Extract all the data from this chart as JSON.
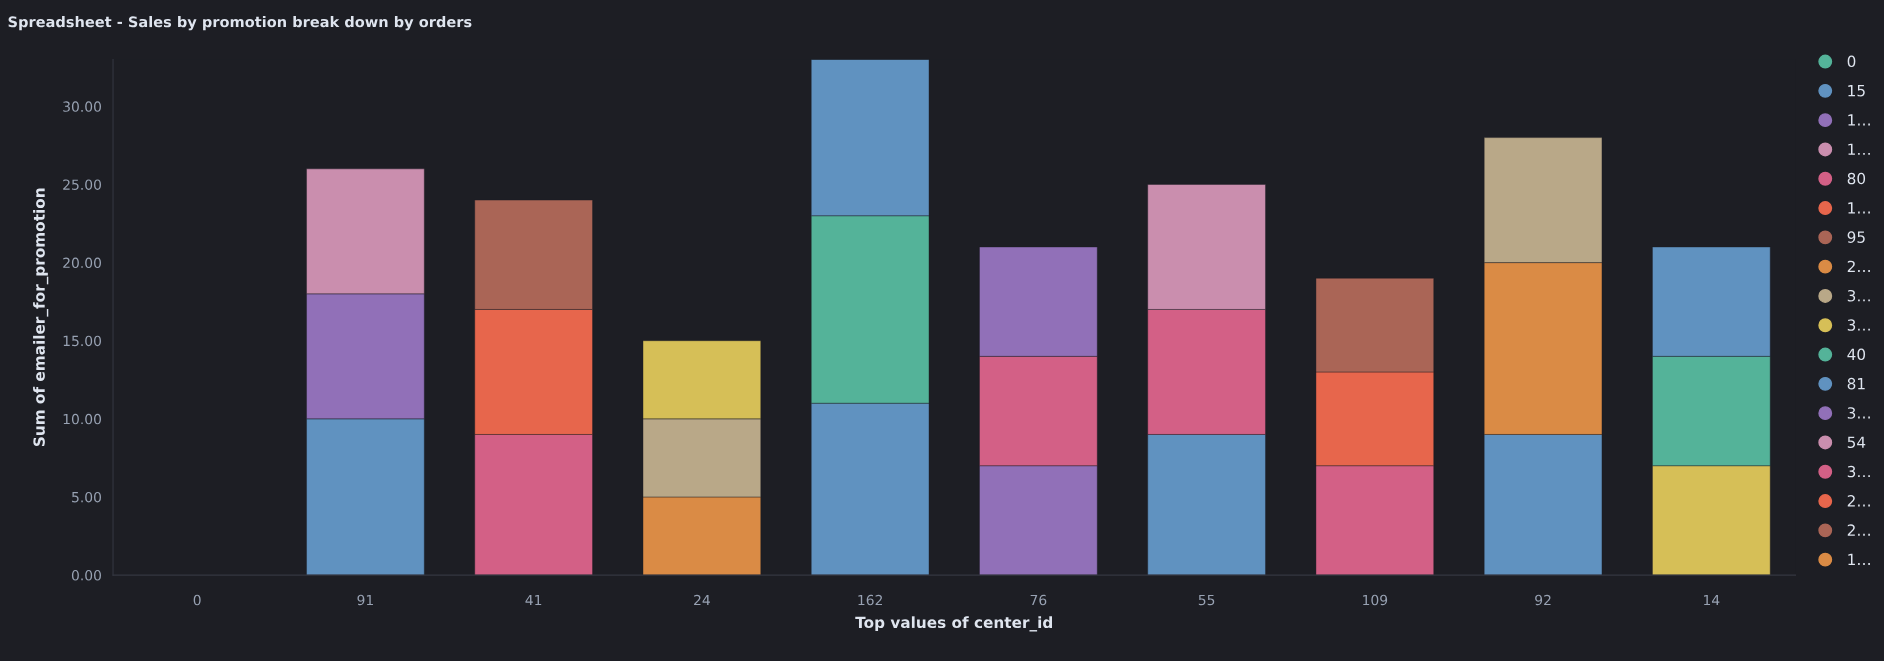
{
  "chart_data": {
    "type": "bar",
    "stacked": true,
    "title": "Spreadsheet - Sales by promotion break down by orders",
    "xlabel": "Top values of center_id",
    "ylabel": "Sum of emailer_for_promotion",
    "categories": [
      "0",
      "91",
      "41",
      "24",
      "162",
      "76",
      "55",
      "109",
      "92",
      "14"
    ],
    "ylim": [
      0,
      33
    ],
    "yticks": [
      {
        "value": 0,
        "label": "0.00"
      },
      {
        "value": 5,
        "label": "5.00"
      },
      {
        "value": 10,
        "label": "10.00"
      },
      {
        "value": 15,
        "label": "15.00"
      },
      {
        "value": 20,
        "label": "20.00"
      },
      {
        "value": 25,
        "label": "25.00"
      },
      {
        "value": 30,
        "label": "30.00"
      }
    ],
    "grid": false,
    "legend": "right",
    "marker": "circle",
    "series": [
      {
        "name": "0",
        "color": "#54b399",
        "values": [
          null,
          null,
          null,
          null,
          null,
          null,
          null,
          null,
          null,
          null
        ]
      },
      {
        "name": "15",
        "color": "#6092c0",
        "values": [
          null,
          10,
          null,
          null,
          11,
          null,
          9,
          null,
          9,
          null
        ]
      },
      {
        "name": "1…",
        "color": "#9170b8",
        "values": [
          null,
          8,
          null,
          null,
          null,
          7,
          null,
          null,
          null,
          null
        ]
      },
      {
        "name": "1…",
        "color": "#ca8eae",
        "values": [
          null,
          8,
          null,
          null,
          null,
          null,
          null,
          null,
          null,
          null
        ]
      },
      {
        "name": "80",
        "color": "#d36086",
        "values": [
          null,
          null,
          9,
          null,
          null,
          7,
          8,
          7,
          null,
          null
        ]
      },
      {
        "name": "1…",
        "color": "#e7664c",
        "values": [
          null,
          null,
          8,
          null,
          null,
          null,
          null,
          6,
          null,
          null
        ]
      },
      {
        "name": "95",
        "color": "#aa6556",
        "values": [
          null,
          null,
          7,
          null,
          null,
          null,
          null,
          6,
          null,
          null
        ]
      },
      {
        "name": "2…",
        "color": "#da8b45",
        "values": [
          null,
          null,
          null,
          5,
          null,
          null,
          null,
          null,
          11,
          null
        ]
      },
      {
        "name": "3…",
        "color": "#b9a888",
        "values": [
          null,
          null,
          null,
          5,
          null,
          null,
          null,
          null,
          8,
          null
        ]
      },
      {
        "name": "3…",
        "color": "#d6bf57",
        "values": [
          null,
          null,
          null,
          5,
          null,
          null,
          null,
          null,
          null,
          7
        ]
      },
      {
        "name": "40",
        "color": "#54b399",
        "values": [
          null,
          null,
          null,
          null,
          12,
          null,
          null,
          null,
          null,
          7
        ]
      },
      {
        "name": "81",
        "color": "#6092c0",
        "values": [
          null,
          null,
          null,
          null,
          10,
          null,
          null,
          null,
          null,
          7
        ]
      },
      {
        "name": "3…",
        "color": "#9170b8",
        "values": [
          null,
          null,
          null,
          null,
          null,
          7,
          null,
          null,
          null,
          null
        ]
      },
      {
        "name": "54",
        "color": "#ca8eae",
        "values": [
          null,
          null,
          null,
          null,
          null,
          null,
          8,
          null,
          null,
          null
        ]
      },
      {
        "name": "3…",
        "color": "#d36086",
        "values": [
          null,
          null,
          null,
          null,
          null,
          null,
          null,
          null,
          null,
          null
        ]
      },
      {
        "name": "2…",
        "color": "#e7664c",
        "values": [
          null,
          null,
          null,
          null,
          null,
          null,
          null,
          null,
          null,
          null
        ]
      },
      {
        "name": "2…",
        "color": "#aa6556",
        "values": [
          null,
          null,
          null,
          null,
          null,
          null,
          null,
          null,
          null,
          null
        ]
      },
      {
        "name": "1…",
        "color": "#da8b45",
        "values": [
          null,
          null,
          null,
          null,
          null,
          null,
          null,
          null,
          null,
          null
        ]
      }
    ]
  }
}
